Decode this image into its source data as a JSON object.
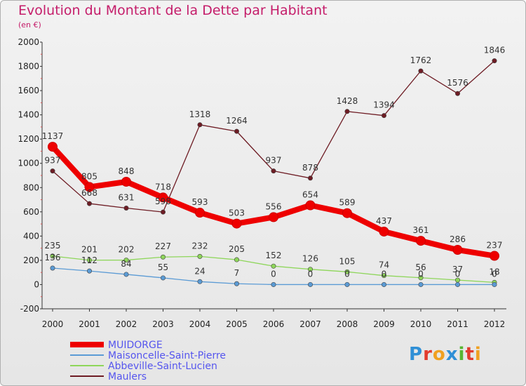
{
  "header": {
    "title": "Evolution du Montant de la Dette par Habitant",
    "subtitle": "(en €)"
  },
  "logo": {
    "text": "Proxiti"
  },
  "chart_data": {
    "type": "line",
    "title": "Evolution du Montant de la Dette par Habitant",
    "ylabel": "(en €)",
    "xlabel": "",
    "x": [
      2000,
      2001,
      2002,
      2003,
      2004,
      2005,
      2006,
      2007,
      2008,
      2009,
      2010,
      2011,
      2012
    ],
    "yticks": [
      -200,
      0,
      200,
      400,
      600,
      800,
      1000,
      1200,
      1400,
      1600,
      1800,
      2000
    ],
    "ylim": [
      -200,
      2000
    ],
    "grid": false,
    "legend": "bottom-left",
    "series": [
      {
        "name": "MUIDORGE",
        "color": "#ee0000",
        "values": [
          1137,
          805,
          848,
          718,
          593,
          503,
          556,
          654,
          589,
          437,
          361,
          286,
          237
        ]
      },
      {
        "name": "Maisoncelle-Saint-Pierre",
        "color": "#5b9bd5",
        "values": [
          136,
          112,
          84,
          55,
          24,
          7,
          0,
          0,
          0,
          0,
          0,
          0,
          0
        ]
      },
      {
        "name": "Abbeville-Saint-Lucien",
        "color": "#8ed65a",
        "values": [
          235,
          201,
          202,
          227,
          232,
          205,
          152,
          126,
          105,
          74,
          56,
          37,
          18
        ]
      },
      {
        "name": "Maulers",
        "color": "#6e1c24",
        "values": [
          937,
          668,
          631,
          598,
          1318,
          1264,
          937,
          878,
          1428,
          1394,
          1762,
          1576,
          1846
        ]
      }
    ]
  }
}
